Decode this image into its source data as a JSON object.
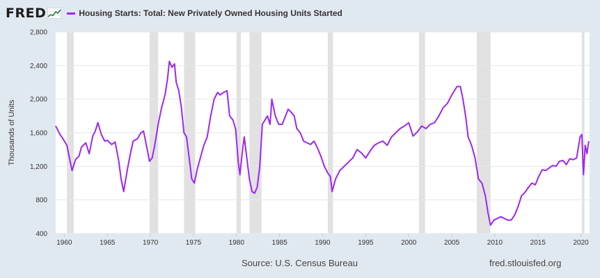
{
  "logo": {
    "text": "FRED",
    "icon": "chart-line-icon"
  },
  "legend": {
    "label": "Housing Starts: Total: New Privately Owned Housing Units Started",
    "color": "#9c27f3"
  },
  "footer": {
    "source": "Source: U.S. Census Bureau",
    "url": "fred.stlouisfed.org"
  },
  "colors": {
    "background": "#e1e9f0",
    "plot_bg": "#ffffff",
    "recession": "#e1e1e1",
    "grid": "#e6e6e6",
    "line": "#9c27f3"
  },
  "chart_data": {
    "type": "line",
    "title": "",
    "xlabel": "",
    "ylabel": "Thousands of Units",
    "xlim": [
      1959.0,
      2021.0
    ],
    "ylim": [
      400,
      2800
    ],
    "yticks": [
      400,
      800,
      1200,
      1600,
      2000,
      2400,
      2800
    ],
    "ytick_labels": [
      "400",
      "800",
      "1,200",
      "1,600",
      "2,000",
      "2,400",
      "2,800"
    ],
    "xticks": [
      1960,
      1965,
      1970,
      1975,
      1980,
      1985,
      1990,
      1995,
      2000,
      2005,
      2010,
      2015,
      2020
    ],
    "xtick_labels": [
      "1960",
      "1965",
      "1970",
      "1975",
      "1980",
      "1985",
      "1990",
      "1995",
      "2000",
      "2005",
      "2010",
      "2015",
      "2020"
    ],
    "grid": true,
    "recessions": [
      [
        1960.3,
        1961.1
      ],
      [
        1969.9,
        1970.9
      ],
      [
        1973.9,
        1975.2
      ],
      [
        1980.0,
        1980.5
      ],
      [
        1981.5,
        1982.9
      ],
      [
        1990.6,
        1991.2
      ],
      [
        2001.2,
        2001.9
      ],
      [
        2007.9,
        2009.5
      ],
      [
        2020.1,
        2020.4
      ]
    ],
    "series": [
      {
        "name": "Housing Starts: Total: New Privately Owned Housing Units Started",
        "x": [
          1959.0,
          1959.5,
          1959.9,
          1960.3,
          1960.7,
          1960.9,
          1961.3,
          1961.7,
          1962.0,
          1962.5,
          1962.9,
          1963.3,
          1963.6,
          1963.9,
          1964.3,
          1964.7,
          1965.0,
          1965.5,
          1965.9,
          1966.3,
          1966.6,
          1966.9,
          1967.3,
          1967.7,
          1968.0,
          1968.5,
          1968.9,
          1969.2,
          1969.5,
          1969.9,
          1970.2,
          1970.5,
          1970.9,
          1971.3,
          1971.7,
          1972.0,
          1972.2,
          1972.5,
          1972.8,
          1973.0,
          1973.3,
          1973.6,
          1973.9,
          1974.2,
          1974.5,
          1974.8,
          1975.1,
          1975.4,
          1975.8,
          1976.2,
          1976.6,
          1977.0,
          1977.4,
          1977.8,
          1978.1,
          1978.5,
          1978.9,
          1979.2,
          1979.6,
          1979.9,
          1980.2,
          1980.4,
          1980.7,
          1980.9,
          1981.2,
          1981.5,
          1981.8,
          1982.1,
          1982.4,
          1982.7,
          1983.0,
          1983.3,
          1983.6,
          1983.9,
          1984.1,
          1984.5,
          1984.9,
          1985.3,
          1985.7,
          1986.0,
          1986.3,
          1986.7,
          1987.0,
          1987.4,
          1987.8,
          1988.2,
          1988.6,
          1989.0,
          1989.4,
          1989.8,
          1990.2,
          1990.6,
          1990.9,
          1991.1,
          1991.5,
          1992.0,
          1992.5,
          1993.0,
          1993.5,
          1994.0,
          1994.5,
          1995.0,
          1995.5,
          1996.0,
          1996.5,
          1997.0,
          1997.5,
          1998.0,
          1998.5,
          1999.0,
          1999.5,
          2000.0,
          2000.5,
          2001.0,
          2001.5,
          2002.0,
          2002.5,
          2003.0,
          2003.5,
          2004.0,
          2004.5,
          2005.0,
          2005.3,
          2005.6,
          2006.0,
          2006.3,
          2006.6,
          2006.9,
          2007.3,
          2007.7,
          2008.1,
          2008.5,
          2008.9,
          2009.2,
          2009.5,
          2009.9,
          2010.3,
          2010.7,
          2011.1,
          2011.5,
          2011.9,
          2012.3,
          2012.7,
          2013.1,
          2013.5,
          2013.9,
          2014.3,
          2014.7,
          2015.1,
          2015.5,
          2015.9,
          2016.3,
          2016.7,
          2017.1,
          2017.5,
          2017.9,
          2018.3,
          2018.7,
          2019.1,
          2019.5,
          2019.9,
          2020.1,
          2020.3,
          2020.5,
          2020.7,
          2020.9
        ],
        "values": [
          1680,
          1580,
          1520,
          1450,
          1250,
          1150,
          1280,
          1320,
          1430,
          1480,
          1350,
          1560,
          1620,
          1720,
          1580,
          1500,
          1510,
          1460,
          1490,
          1280,
          1050,
          900,
          1150,
          1360,
          1500,
          1530,
          1600,
          1620,
          1470,
          1260,
          1300,
          1450,
          1700,
          1900,
          2050,
          2250,
          2450,
          2380,
          2420,
          2200,
          2100,
          1900,
          1600,
          1550,
          1300,
          1050,
          1000,
          1150,
          1300,
          1450,
          1550,
          1800,
          2000,
          2080,
          2050,
          2080,
          2100,
          1800,
          1750,
          1640,
          1250,
          1100,
          1400,
          1550,
          1300,
          1050,
          900,
          880,
          950,
          1200,
          1700,
          1750,
          1800,
          1700,
          2000,
          1800,
          1700,
          1700,
          1800,
          1880,
          1850,
          1800,
          1650,
          1600,
          1500,
          1480,
          1460,
          1500,
          1420,
          1320,
          1200,
          1120,
          1080,
          900,
          1050,
          1150,
          1200,
          1250,
          1300,
          1400,
          1360,
          1300,
          1380,
          1450,
          1480,
          1500,
          1450,
          1550,
          1600,
          1650,
          1680,
          1720,
          1560,
          1610,
          1680,
          1650,
          1700,
          1720,
          1800,
          1900,
          1950,
          2050,
          2100,
          2150,
          2150,
          2000,
          1800,
          1550,
          1450,
          1300,
          1050,
          1000,
          850,
          650,
          500,
          560,
          580,
          600,
          580,
          560,
          560,
          620,
          720,
          850,
          890,
          950,
          1000,
          980,
          1080,
          1160,
          1150,
          1180,
          1210,
          1200,
          1260,
          1270,
          1220,
          1290,
          1280,
          1300,
          1550,
          1580,
          1100,
          1450,
          1350,
          1500
        ]
      }
    ]
  }
}
